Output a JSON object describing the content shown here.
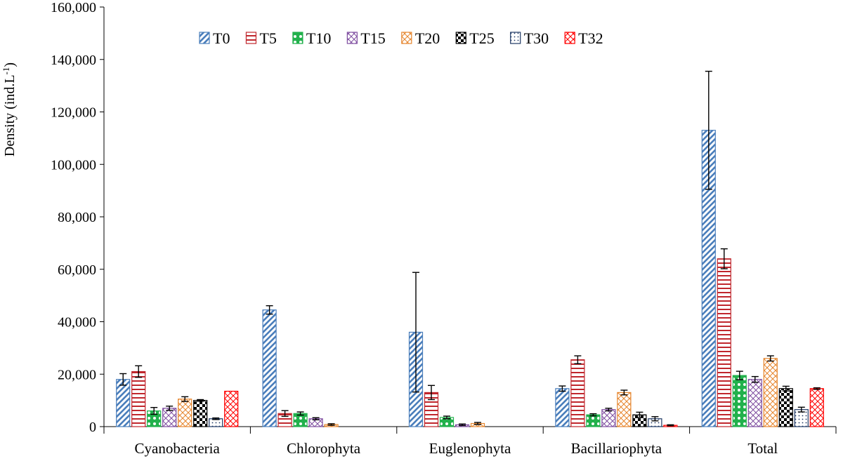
{
  "chart_data": {
    "type": "bar",
    "title": "",
    "xlabel": "",
    "ylabel": "Density (ind.L",
    "ylabel_superscript": "-1",
    "ylabel_suffix": ")",
    "ylim": [
      0,
      160000
    ],
    "yticks": [
      0,
      20000,
      40000,
      60000,
      80000,
      100000,
      120000,
      140000,
      160000
    ],
    "ytick_labels": [
      "0",
      "20,000",
      "40,000",
      "60,000",
      "80,000",
      "100,000",
      "120,000",
      "140,000",
      "160,000"
    ],
    "grid": false,
    "legend_position": "top",
    "categories": [
      "Cyanobacteria",
      "Chlorophyta",
      "Euglenophyta",
      "Bacillariophyta",
      "Total"
    ],
    "series": [
      {
        "name": "T0",
        "color": "#4a7ebb",
        "pattern": "diagonal-stripes",
        "values": [
          18000,
          44500,
          36000,
          14500,
          113000
        ],
        "errors": [
          2200,
          1600,
          22800,
          1000,
          22500
        ]
      },
      {
        "name": "T5",
        "color": "#c0272d",
        "pattern": "horizontal-lines",
        "values": [
          21000,
          5000,
          13000,
          25500,
          64000
        ],
        "errors": [
          2200,
          1100,
          2700,
          1500,
          3800
        ]
      },
      {
        "name": "T10",
        "color": "#22b14c",
        "pattern": "circles",
        "values": [
          6000,
          5000,
          3500,
          4500,
          19500
        ],
        "errors": [
          1300,
          600,
          500,
          400,
          1600
        ]
      },
      {
        "name": "T15",
        "color": "#7f4ea0",
        "pattern": "diagonal-cross",
        "values": [
          7000,
          3000,
          700,
          6500,
          18000
        ],
        "errors": [
          800,
          400,
          300,
          500,
          1100
        ]
      },
      {
        "name": "T20",
        "color": "#e6862e",
        "pattern": "diagonal-cross",
        "values": [
          10500,
          800,
          1200,
          13000,
          26000
        ],
        "errors": [
          900,
          300,
          400,
          900,
          1000
        ]
      },
      {
        "name": "T25",
        "color": "#000000",
        "pattern": "checker",
        "values": [
          10000,
          0,
          0,
          4500,
          14500
        ],
        "errors": [
          300,
          0,
          0,
          1000,
          900
        ]
      },
      {
        "name": "T30",
        "color": "#1f3864",
        "pattern": "dots",
        "values": [
          3000,
          0,
          0,
          3000,
          6500
        ],
        "errors": [
          300,
          0,
          0,
          800,
          900
        ]
      },
      {
        "name": "T32",
        "color": "#ff0000",
        "pattern": "zigzag",
        "values": [
          13500,
          0,
          0,
          500,
          14500
        ],
        "errors": [
          0,
          0,
          0,
          200,
          300
        ]
      }
    ]
  }
}
